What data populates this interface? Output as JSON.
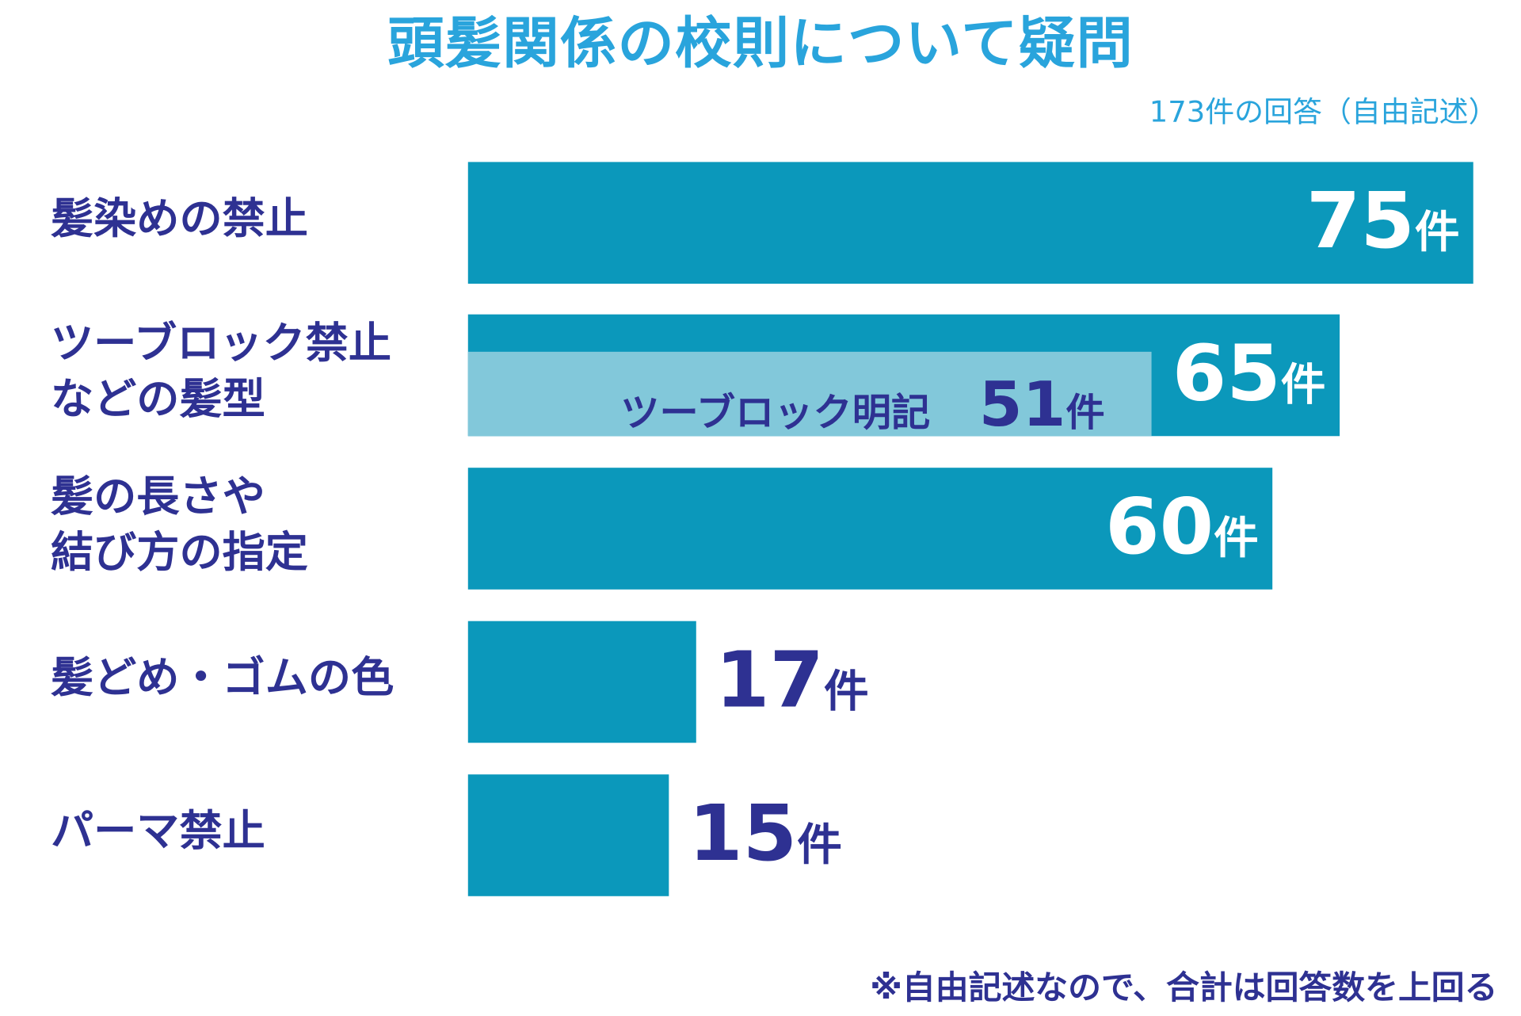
{
  "chart_data": {
    "type": "bar",
    "orientation": "horizontal",
    "title": "頭髪関係の校則について疑問",
    "subtitle": "173件の回答（自由記述）",
    "unit": "件",
    "categories": [
      "髪染めの禁止",
      "ツーブロック禁止\nなどの髪型",
      "髪の長さや\n結び方の指定",
      "髪どめ・ゴムの色",
      "パーマ禁止"
    ],
    "values": [
      75,
      65,
      60,
      17,
      15
    ],
    "sub_series": {
      "label": "ツーブロック明記",
      "category_index": 1,
      "value": 51
    },
    "xlim": [
      0,
      75
    ],
    "grid": false,
    "colors": {
      "bar": "#0b98bb",
      "sub_bar": "#82c8da",
      "label": "#2e3192",
      "title": "#29a4dc",
      "value_inside": "#ffffff"
    },
    "note": "※自由記述なので、合計は回答数を上回る"
  }
}
